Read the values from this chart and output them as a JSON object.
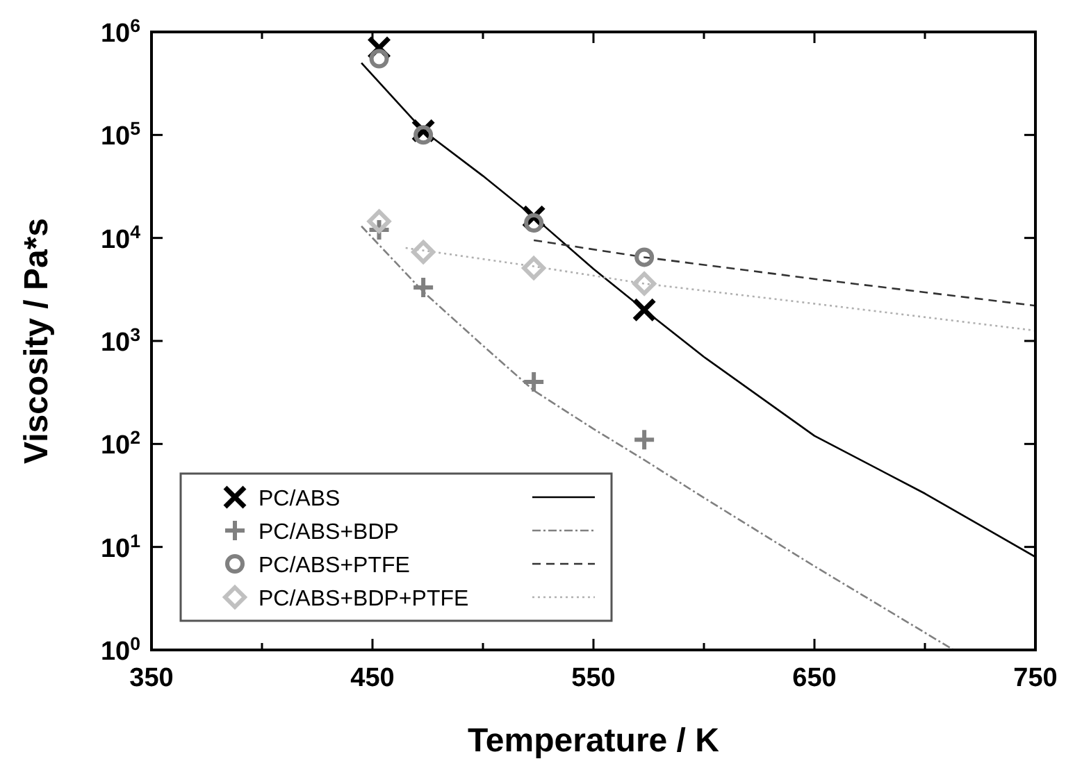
{
  "chart_data": {
    "type": "scatter",
    "xlabel": "Temperature / K",
    "ylabel": "Viscosity / Pa*s",
    "log": "y",
    "xlim": [
      350,
      750
    ],
    "ylim": [
      1,
      1000000
    ],
    "xticks": [
      350,
      {
        "value": 400,
        "label": null
      },
      450,
      {
        "value": 500,
        "label": null
      },
      550,
      {
        "value": 600,
        "label": null
      },
      650,
      {
        "value": 700,
        "label": null
      },
      750
    ],
    "yticks": [
      {
        "value": 1,
        "label": "10$^{0}$"
      },
      {
        "value": 10,
        "label": "10$^{1}$"
      },
      {
        "value": 100,
        "label": "10$^{2}$"
      },
      {
        "value": 1000,
        "label": "10$^{3}$"
      },
      {
        "value": 10000,
        "label": "10$^{4}$"
      },
      {
        "value": 100000,
        "label": "10$^{5}$"
      },
      {
        "value": 1000000,
        "label": "10$^{6}$"
      }
    ],
    "grid": false,
    "legend": "bottom left",
    "series": [
      {
        "name": "PC/ABS",
        "marker": "x",
        "color": "#000000",
        "x": [
          453,
          473,
          523,
          573
        ],
        "values": [
          700000,
          110000,
          16000,
          2000
        ]
      },
      {
        "name": "PC/ABS+BDP",
        "marker": "cross",
        "color": "#808080",
        "x": [
          453,
          473,
          523,
          573
        ],
        "values": [
          12000,
          3300,
          400,
          110
        ]
      },
      {
        "name": "PC/ABS+PTFE",
        "marker": "circle",
        "color": "#808080",
        "x": [
          453,
          473,
          523,
          573
        ],
        "values": [
          550000,
          100000,
          14000,
          6500
        ]
      },
      {
        "name": "PC/ABS+BDP+PTFE",
        "marker": "diamond",
        "color": "#c0c0c0",
        "x": [
          453,
          473,
          523,
          573
        ],
        "values": [
          14500,
          7300,
          5100,
          3600
        ]
      },
      {
        "type": "line",
        "marker": "none",
        "line_style": "solid",
        "color": "#000000",
        "x": [
          445,
          473,
          500,
          523,
          550,
          573,
          600,
          650,
          700,
          750
        ],
        "values": [
          500000,
          110000,
          40000,
          16000,
          5000,
          2000,
          700,
          120,
          33,
          8
        ]
      },
      {
        "type": "line",
        "marker": "none",
        "line_style": "dashdot",
        "color": "#808080",
        "x": [
          445,
          473,
          500,
          523,
          550,
          573,
          600,
          650,
          713
        ],
        "values": [
          13000,
          3000,
          900,
          330,
          140,
          70,
          30,
          6.5,
          1
        ]
      },
      {
        "type": "line",
        "marker": "none",
        "line_style": "dashed",
        "color": "#333333",
        "x": [
          523,
          573,
          650,
          750
        ],
        "values": [
          9500,
          6500,
          4000,
          2200
        ]
      },
      {
        "type": "line",
        "marker": "none",
        "line_style": "dotted",
        "color": "#b0b0b0",
        "x": [
          465,
          523,
          573,
          650,
          750
        ],
        "values": [
          8000,
          5300,
          3600,
          2300,
          1260
        ]
      }
    ]
  }
}
